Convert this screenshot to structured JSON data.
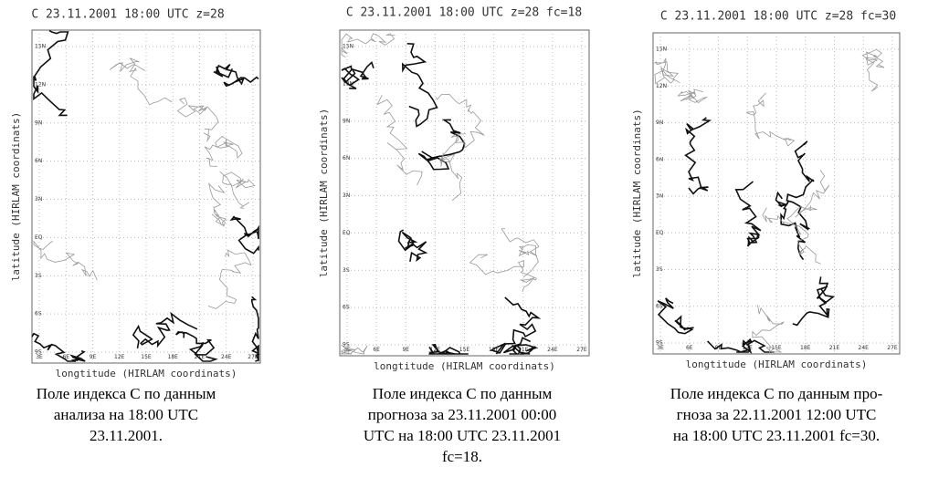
{
  "panels": [
    {
      "title": "C 23.11.2001 18:00 UTC z=28",
      "y_axis_label": "latitude (HIRLAM coordinats)",
      "x_axis_label": "longtitude (HIRLAM coordinats)",
      "y_ticks": [
        "15N",
        "12N",
        "9N",
        "6N",
        "3N",
        "EQ",
        "3S",
        "6S",
        "9S"
      ],
      "x_ticks": [
        "3E",
        "6E",
        "9E",
        "12E",
        "15E",
        "18E",
        "21E",
        "24E",
        "27E"
      ],
      "caption": [
        "Поле индекса С по данным",
        "анализа на 18:00 UTC",
        "23.11.2001."
      ]
    },
    {
      "title": "C 23.11.2001 18:00 UTC z=28 fc=18",
      "y_axis_label": "latitude (HIRLAM coordinats)",
      "x_axis_label": "longtitude (HIRLAM coordinats)",
      "y_ticks": [
        "15N",
        "12N",
        "9N",
        "6N",
        "3N",
        "EQ",
        "3S",
        "6S",
        "9S"
      ],
      "x_ticks": [
        "3E",
        "6E",
        "9E",
        "12E",
        "15E",
        "18E",
        "21E",
        "24E",
        "27E"
      ],
      "caption": [
        "Поле индекса С по данным",
        "прогноза за 23.11.2001 00:00",
        "UTC на 18:00 UTC 23.11.2001",
        "fc=18."
      ]
    },
    {
      "title": "C 23.11.2001 18:00 UTC z=28 fc=30",
      "y_axis_label": "latitude (HIRLAM coordinats)",
      "x_axis_label": "longtitude (HIRLAM coordinats)",
      "y_ticks": [
        "15N",
        "12N",
        "9N",
        "6N",
        "3N",
        "EQ",
        "3S",
        "6S",
        "9S"
      ],
      "x_ticks": [
        "3E",
        "6E",
        "9E",
        "12E",
        "15E",
        "18E",
        "21E",
        "24E",
        "27E"
      ],
      "caption": [
        "Поле индекса С по данным про-",
        "гноза за 22.11.2001 12:00 UTC",
        "на 18:00 UTC 23.11.2001 fc=30."
      ]
    }
  ]
}
